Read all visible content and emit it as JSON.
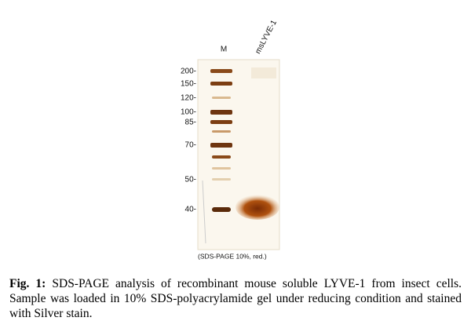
{
  "figure": {
    "lanes": [
      "M",
      "msLYVE-1"
    ],
    "markers": [
      "200-",
      "150-",
      "120-",
      "100-",
      "85-",
      "70-",
      "50-",
      "40-"
    ],
    "note": "(SDS-PAGE 10%, red.)"
  },
  "caption": {
    "label": "Fig. 1:",
    "text": "SDS-PAGE analysis of recombinant mouse soluble LYVE-1 from insect cells. Sample was loaded in 10% SDS-polyacrylamide gel under reducing condition and stained with Silver stain."
  }
}
